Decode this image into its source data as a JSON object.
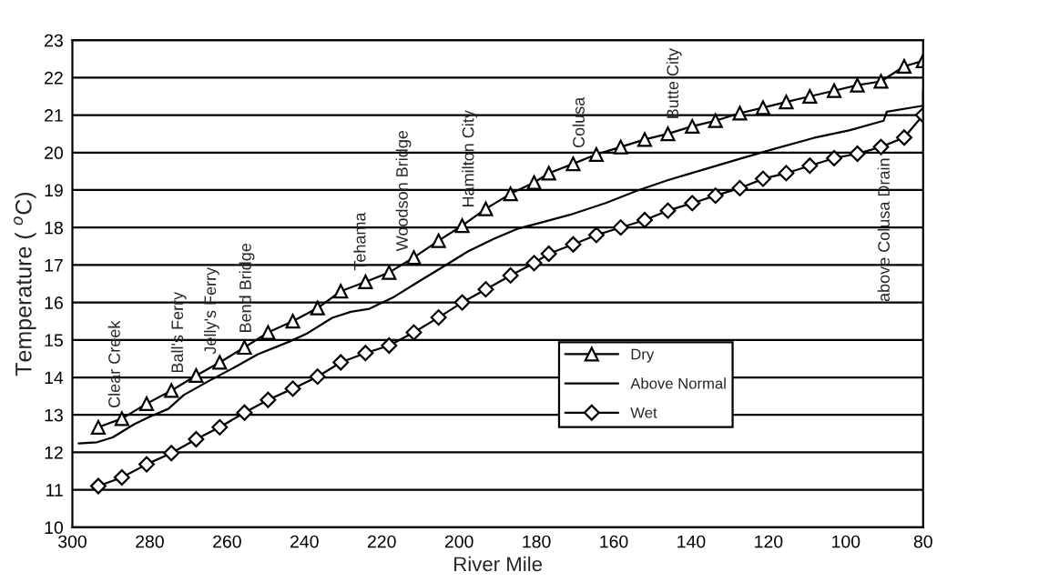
{
  "chart_data": {
    "type": "line",
    "xlabel": "River Mile",
    "ylabel": "Temperature ( $^{o}$C)",
    "xlim": [
      300,
      80
    ],
    "ylim": [
      10,
      23
    ],
    "xticks": [
      300,
      280,
      260,
      240,
      220,
      200,
      180,
      160,
      140,
      120,
      100,
      80
    ],
    "yticks": [
      10,
      11,
      12,
      13,
      14,
      15,
      16,
      17,
      18,
      19,
      20,
      21,
      22,
      23
    ],
    "grid": "y",
    "legend": "bottom right",
    "series": [
      {
        "name": "Dry",
        "color": "#000000",
        "marker": "triangle",
        "x": [
          293.3,
          287.2,
          280.8,
          274.4,
          268,
          261.9,
          255.5,
          249.4,
          243,
          236.6,
          230.6,
          224.2,
          218.1,
          211.7,
          205.3,
          199.2,
          193.1,
          186.7,
          180.6,
          176.8,
          170.5,
          164.5,
          158.2,
          152,
          146,
          139.7,
          133.7,
          127.4,
          121.4,
          115.4,
          109.3,
          103,
          97,
          90.9,
          84.9,
          80
        ],
        "values": [
          12.67,
          12.9,
          13.3,
          13.65,
          14.05,
          14.4,
          14.8,
          15.2,
          15.5,
          15.85,
          16.3,
          16.55,
          16.8,
          17.2,
          17.65,
          18.05,
          18.5,
          18.9,
          19.2,
          19.45,
          19.7,
          19.95,
          20.15,
          20.35,
          20.5,
          20.7,
          20.85,
          21.05,
          21.2,
          21.35,
          21.5,
          21.65,
          21.8,
          21.9,
          22.3,
          22.45
        ]
      },
      {
        "name": "Above Normal",
        "color": "#000000",
        "marker": "none",
        "x": [
          298.4,
          293.6,
          289.6,
          284,
          280,
          275.2,
          271.2,
          264.8,
          258.4,
          252,
          244,
          239.2,
          232.8,
          228,
          223.2,
          216.8,
          210.4,
          204,
          197.6,
          191.2,
          184.8,
          180,
          171.3,
          161.9,
          154,
          146.1,
          136.7,
          127.2,
          117.8,
          108.3,
          98.9,
          90.2,
          89.4,
          80,
          80
        ],
        "values": [
          12.24,
          12.27,
          12.4,
          12.75,
          12.95,
          13.16,
          13.53,
          13.9,
          14.25,
          14.62,
          14.95,
          15.18,
          15.59,
          15.75,
          15.83,
          16.15,
          16.56,
          16.96,
          17.37,
          17.69,
          17.97,
          18.1,
          18.34,
          18.66,
          18.98,
          19.26,
          19.55,
          19.84,
          20.12,
          20.39,
          20.6,
          20.85,
          21.09,
          21.25,
          21.65
        ]
      },
      {
        "name": "Wet",
        "color": "#000000",
        "marker": "diamond",
        "x": [
          293.3,
          287.2,
          280.8,
          274.4,
          268,
          261.9,
          255.5,
          249.4,
          243,
          236.6,
          230.6,
          224.2,
          218.1,
          211.7,
          205.3,
          199.2,
          193.1,
          186.7,
          180.6,
          176.8,
          170.5,
          164.5,
          158.2,
          152,
          146,
          139.7,
          133.7,
          127.4,
          121.4,
          115.4,
          109.3,
          103,
          97,
          90.9,
          84.9,
          80
        ],
        "values": [
          11.1,
          11.33,
          11.68,
          11.98,
          12.35,
          12.67,
          13.06,
          13.4,
          13.7,
          14.02,
          14.4,
          14.65,
          14.85,
          15.2,
          15.6,
          16.0,
          16.35,
          16.72,
          17.05,
          17.3,
          17.55,
          17.8,
          18.0,
          18.2,
          18.45,
          18.65,
          18.85,
          19.05,
          19.3,
          19.45,
          19.65,
          19.85,
          19.97,
          20.15,
          20.4,
          21.0
        ]
      }
    ],
    "annotations": [
      {
        "text": "Clear Creek",
        "x": 288.8,
        "y": 12.84
      },
      {
        "text": "Ball's Ferry",
        "x": 272.5,
        "y": 13.77
      },
      {
        "text": "Jelly's Ferry",
        "x": 264,
        "y": 14.28
      },
      {
        "text": "Bend Bridge",
        "x": 254.9,
        "y": 14.84
      },
      {
        "text": "Tehama",
        "x": 225.3,
        "y": 16.51
      },
      {
        "text": "Woodson Bridge",
        "x": 214.4,
        "y": 17.03
      },
      {
        "text": "Hamilton City",
        "x": 197.3,
        "y": 18.19
      },
      {
        "text": "Colusa",
        "x": 168.7,
        "y": 19.78
      },
      {
        "text": "Butte City",
        "x": 144.4,
        "y": 20.55
      },
      {
        "text": "above Colusa Drain",
        "x": 89.8,
        "y": 20.2
      }
    ]
  }
}
